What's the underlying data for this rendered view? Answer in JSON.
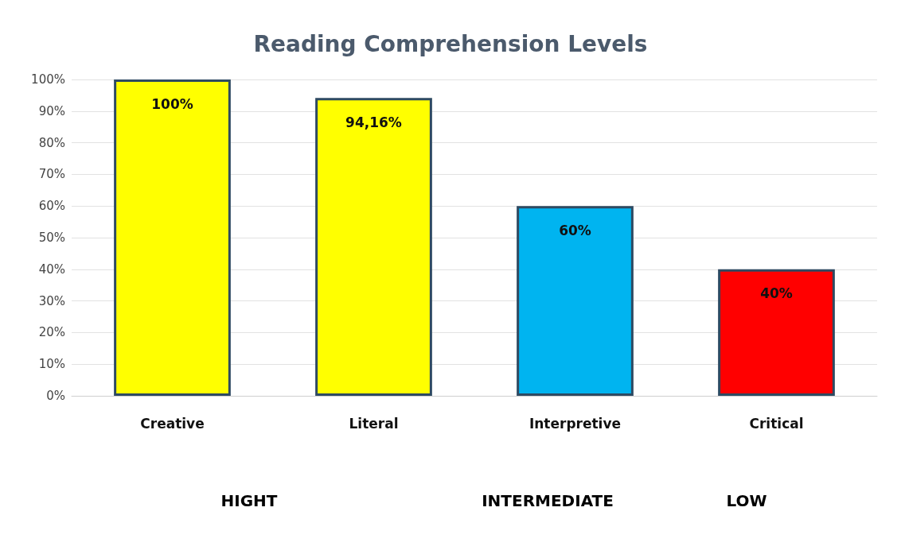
{
  "chart_data": {
    "type": "bar",
    "title": "Reading Comprehension Levels",
    "categories": [
      "Creative",
      "Literal",
      "Interpretive",
      "Critical"
    ],
    "values": [
      100,
      94.16,
      60,
      40
    ],
    "colors": [
      "#ffff00",
      "#ffff00",
      "#00b4f0",
      "#ff0000"
    ],
    "value_labels": [
      "100%",
      "94,16%",
      "60%",
      "40%"
    ],
    "ylim": [
      0,
      100
    ],
    "yticks": [
      {
        "value": 0,
        "label": "0%"
      },
      {
        "value": 10,
        "label": "10%"
      },
      {
        "value": 20,
        "label": "20%"
      },
      {
        "value": 30,
        "label": "30%"
      },
      {
        "value": 40,
        "label": "40%"
      },
      {
        "value": 50,
        "label": "50%"
      },
      {
        "value": 60,
        "label": "60%"
      },
      {
        "value": 70,
        "label": "70%"
      },
      {
        "value": 80,
        "label": "80%"
      },
      {
        "value": 90,
        "label": "90%"
      },
      {
        "value": 100,
        "label": "100%"
      }
    ],
    "grid": "y",
    "annotations": [
      "HIGHT",
      "INTERMEDIATE",
      "LOW"
    ]
  }
}
